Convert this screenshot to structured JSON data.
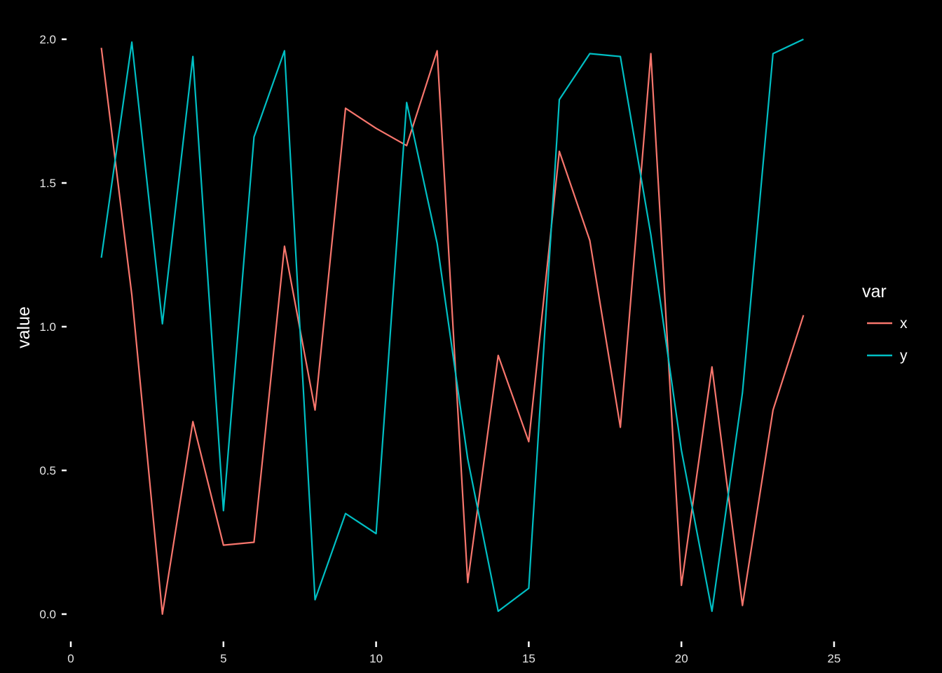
{
  "chart_data": {
    "type": "line",
    "title": "",
    "xlabel": "",
    "ylabel": "value",
    "xlim": [
      0,
      25
    ],
    "ylim": [
      0,
      2
    ],
    "x_ticks": [
      0,
      5,
      10,
      15,
      20,
      25
    ],
    "y_ticks": [
      0.0,
      0.5,
      1.0,
      1.5,
      2.0
    ],
    "x_tick_labels": [
      "0",
      "5",
      "10",
      "15",
      "20",
      "25"
    ],
    "y_tick_labels": [
      "0.0",
      "0.5",
      "1.0",
      "1.5",
      "2.0"
    ],
    "grid": false,
    "background": "#000000",
    "legend": {
      "title": "var",
      "position": "right"
    },
    "x": [
      1,
      2,
      3,
      4,
      5,
      6,
      7,
      8,
      9,
      10,
      11,
      12,
      13,
      14,
      15,
      16,
      17,
      18,
      19,
      20,
      21,
      22,
      23,
      24
    ],
    "series": [
      {
        "name": "x",
        "color": "#F8766D",
        "values": [
          1.97,
          1.11,
          0.0,
          0.67,
          0.24,
          0.25,
          1.28,
          0.71,
          1.76,
          1.69,
          1.63,
          1.96,
          0.11,
          0.9,
          0.6,
          1.61,
          1.3,
          0.65,
          1.95,
          0.1,
          0.86,
          0.03,
          0.71,
          1.04
        ]
      },
      {
        "name": "y",
        "color": "#00BFC4",
        "values": [
          1.24,
          1.99,
          1.01,
          1.94,
          0.36,
          1.66,
          1.96,
          0.05,
          0.35,
          0.28,
          1.78,
          1.29,
          0.54,
          0.01,
          0.09,
          1.79,
          1.95,
          1.94,
          1.32,
          0.57,
          0.01,
          0.77,
          1.95,
          2.0
        ]
      }
    ]
  }
}
